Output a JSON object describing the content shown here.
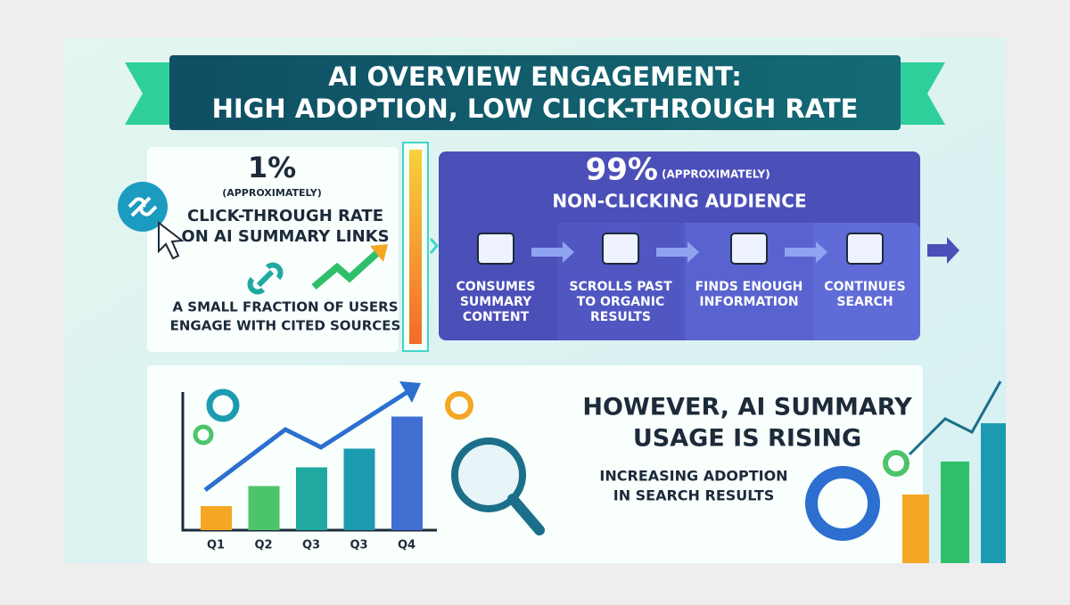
{
  "header": {
    "title_line1": "AI OVERVIEW ENGAGEMENT:",
    "title_line2": "HIGH ADOPTION, LOW CLICK-THROUGH RATE"
  },
  "left_panel": {
    "stat": "1%",
    "qualifier": "(APPROXIMATELY)",
    "label_line1": "CLICK-THROUGH RATE",
    "label_line2": "ON AI SUMMARY LINKS",
    "note_line1": "A SMALL FRACTION OF USERS",
    "note_line2": "ENGAGE WITH CITED SOURCES"
  },
  "right_panel": {
    "stat": "99%",
    "qualifier": "(APPROXIMATELY)",
    "label": "NON-CLICKING AUDIENCE",
    "steps": [
      {
        "lines": [
          "CONSUMES",
          "SUMMARY",
          "CONTENT"
        ]
      },
      {
        "lines": [
          "SCROLLS PAST",
          "TO ORGANIC",
          "RESULTS"
        ]
      },
      {
        "lines": [
          "FINDS ENOUGH",
          "INFORMATION"
        ]
      },
      {
        "lines": [
          "CONTINUES",
          "SEARCH"
        ]
      }
    ]
  },
  "bottom_panel": {
    "heading_line1": "HOWEVER, AI SUMMARY",
    "heading_line2": "USAGE IS RISING",
    "sub_line1": "INCREASING ADOPTION",
    "sub_line2": "IN SEARCH RESULTS"
  },
  "chart_data": {
    "type": "bar",
    "categories": [
      "Q1",
      "Q2",
      "Q3",
      "Q3",
      "Q4"
    ],
    "values": [
      18,
      33,
      47,
      61,
      85
    ],
    "colors": [
      "#f5a623",
      "#4cc46a",
      "#1fa9a0",
      "#1c9bb0",
      "#3f6fd1"
    ],
    "ylim": [
      0,
      100
    ]
  }
}
